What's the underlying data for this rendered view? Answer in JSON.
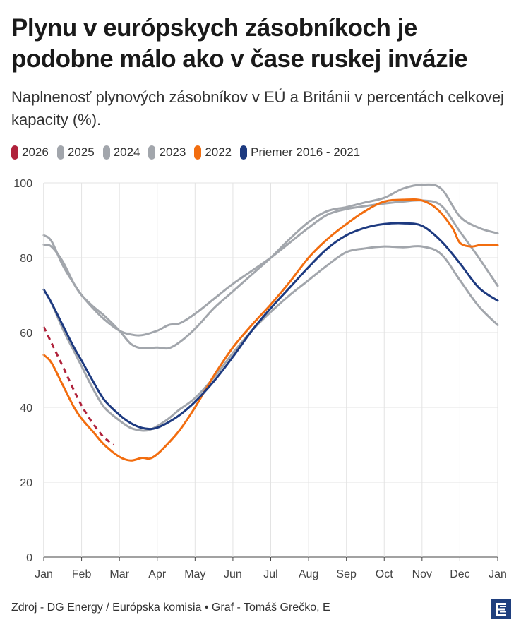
{
  "title": "Plynu v európskych zásobníkoch je podobne málo ako v čase ruskej invázie",
  "subtitle": "Naplnenosť plynových zásobníkov v EÚ a Británii v percentách celkovej kapacity (%).",
  "footer": "Zdroj - DG Energy / Európska komisia • Graf - Tomáš Grečko, E",
  "logo_icon": "e-logo-icon",
  "chart_data": {
    "type": "line",
    "ylim": [
      0,
      100
    ],
    "yticks": [
      "0",
      "20",
      "40",
      "60",
      "80",
      "100"
    ],
    "xticks": [
      "Jan",
      "Feb",
      "Mar",
      "Apr",
      "May",
      "Jun",
      "Jul",
      "Aug",
      "Sep",
      "Oct",
      "Nov",
      "Dec",
      "Jan"
    ],
    "xlabel": "",
    "ylabel": "",
    "series": [
      {
        "name": "2026",
        "color": "#b0223b",
        "dashed": true,
        "x": [
          0,
          0.5,
          1,
          1.5,
          1.85
        ],
        "y": [
          61.5,
          51,
          40.5,
          33,
          30
        ]
      },
      {
        "name": "2025",
        "color": "#a2a6ac",
        "dashed": false,
        "x": [
          0,
          0.2,
          0.5,
          0.8,
          1,
          1.3,
          1.6,
          2,
          2.3,
          2.6,
          2.8,
          3,
          3.3,
          3.6,
          4,
          4.5,
          5,
          5.5,
          6,
          6.5,
          7,
          7.5,
          8,
          8.5,
          9,
          9.5,
          10,
          10.5,
          11,
          11.5,
          12
        ],
        "y": [
          71.5,
          68,
          61,
          55,
          51,
          45,
          40,
          36.5,
          34.5,
          33.8,
          34,
          35,
          37,
          39.5,
          42.5,
          48,
          54.5,
          60.5,
          65.5,
          70,
          74,
          78,
          81.5,
          82.5,
          83,
          82.8,
          83,
          81,
          74,
          67,
          62
        ]
      },
      {
        "name": "2024",
        "color": "#a2a6ac",
        "dashed": false,
        "x": [
          0,
          0.2,
          0.5,
          0.8,
          1,
          1.3,
          1.6,
          2,
          2.3,
          2.6,
          3,
          3.3,
          3.6,
          4,
          4.5,
          5,
          5.5,
          6,
          6.5,
          7,
          7.5,
          8,
          8.5,
          9,
          9.5,
          10,
          10.5,
          11,
          11.5,
          12
        ],
        "y": [
          86,
          84.5,
          78,
          73,
          70,
          66.5,
          63.5,
          60.5,
          59.5,
          59.3,
          60.5,
          62,
          62.5,
          65,
          69,
          73,
          76.5,
          80,
          84,
          88,
          91.5,
          93,
          93.8,
          94.5,
          95,
          95.3,
          94,
          87,
          80,
          72.5
        ]
      },
      {
        "name": "2023",
        "color": "#a2a6ac",
        "dashed": false,
        "x": [
          0,
          0.2,
          0.5,
          0.8,
          1,
          1.3,
          1.6,
          2,
          2.3,
          2.6,
          3,
          3.3,
          3.6,
          4,
          4.5,
          5,
          5.5,
          6,
          6.5,
          7,
          7.5,
          8,
          8.5,
          9,
          9.5,
          10,
          10.5,
          11,
          11.5,
          12
        ],
        "y": [
          83.5,
          83,
          79,
          73,
          70,
          67,
          64.5,
          60.5,
          57,
          55.8,
          56,
          55.8,
          57.5,
          61,
          66.5,
          71,
          75.5,
          80,
          85,
          89.5,
          92.5,
          93.5,
          94.8,
          96,
          98.5,
          99.5,
          98.5,
          91,
          88,
          86.5
        ]
      },
      {
        "name": "2022",
        "color": "#f26d0f",
        "dashed": false,
        "x": [
          0,
          0.2,
          0.5,
          0.8,
          1,
          1.3,
          1.6,
          2,
          2.3,
          2.6,
          2.8,
          3,
          3.3,
          3.6,
          4,
          4.5,
          5,
          5.5,
          6,
          6.5,
          7,
          7.5,
          8,
          8.5,
          9,
          9.5,
          10,
          10.4,
          10.8,
          11,
          11.3,
          11.6,
          12
        ],
        "y": [
          54,
          52,
          46,
          40,
          37,
          33.5,
          30,
          26.8,
          25.8,
          26.5,
          26.3,
          27.5,
          30.5,
          34,
          40,
          48.5,
          56,
          62,
          67.5,
          73.5,
          80,
          85,
          89,
          92.5,
          95,
          95.5,
          95.3,
          93,
          88,
          84,
          83,
          83.5,
          83.3
        ]
      },
      {
        "name": "Priemer 2016 - 2021",
        "color": "#1d3a80",
        "dashed": false,
        "x": [
          0,
          0.2,
          0.5,
          0.8,
          1,
          1.3,
          1.6,
          2,
          2.3,
          2.6,
          2.9,
          3.2,
          3.6,
          4,
          4.5,
          5,
          5.5,
          6,
          6.5,
          7,
          7.5,
          8,
          8.5,
          9,
          9.5,
          10,
          10.5,
          11,
          11.5,
          12
        ],
        "y": [
          71.5,
          68,
          62,
          56,
          52.5,
          47,
          42,
          38,
          35.8,
          34.5,
          34.3,
          35.5,
          38,
          41.5,
          47,
          53.5,
          60.5,
          66.5,
          72,
          77.5,
          82.5,
          86,
          88,
          89,
          89.2,
          88.5,
          84.5,
          78.5,
          72,
          68.5
        ]
      }
    ]
  }
}
